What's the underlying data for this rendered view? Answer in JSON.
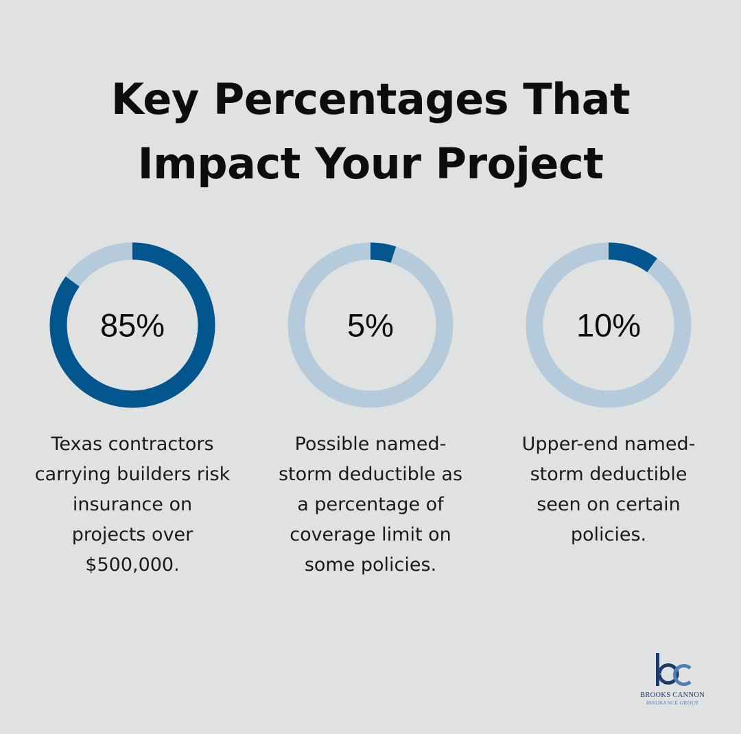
{
  "title_lines": [
    "Key Percentages That",
    "Impact Your Project"
  ],
  "colors": {
    "background": "#e0e2e2",
    "track": "#b5cbdb",
    "fill": "#03558e",
    "text": "#0d0d0d"
  },
  "chart_data": {
    "type": "pie",
    "subtype": "donut",
    "items": [
      {
        "value": 85,
        "label": "85%",
        "description_lines": [
          "Texas contractors",
          "carrying builders risk",
          "insurance on",
          "projects over",
          "$500,000."
        ]
      },
      {
        "value": 5,
        "label": "5%",
        "description_lines": [
          "Possible named-",
          "storm deductible as",
          "a percentage of",
          "coverage limit on",
          "some policies."
        ]
      },
      {
        "value": 10,
        "label": "10%",
        "description_lines": [
          "Upper-end named-",
          "storm deductible",
          "seen on certain",
          "policies."
        ]
      }
    ]
  },
  "logo": {
    "name": "BROOKS CANNON",
    "tagline": "INSURANCE GROUP"
  }
}
